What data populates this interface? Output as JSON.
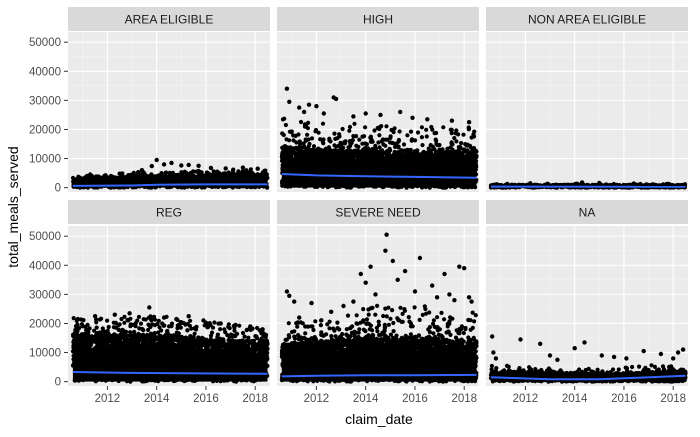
{
  "chart_data": {
    "type": "scatter",
    "xlabel": "claim_date",
    "ylabel": "total_meals_served",
    "x_ticks": [
      "2012",
      "2014",
      "2016",
      "2018"
    ],
    "x_tick_values": [
      2012,
      2014,
      2016,
      2018
    ],
    "xlim": [
      2010.4,
      2018.6
    ],
    "y_ticks": [
      "0",
      "10000",
      "20000",
      "30000",
      "40000",
      "50000"
    ],
    "y_tick_values": [
      0,
      10000,
      20000,
      30000,
      40000,
      50000
    ],
    "ylim": [
      -1500,
      53500
    ],
    "grid": true,
    "legend": "none",
    "colors": {
      "panel_bg": "#ebebeb",
      "strip_bg": "#d9d9d9",
      "grid_major": "#ffffff",
      "point": "#000000",
      "trend": "#3366ff",
      "text": "#4d4d4d",
      "strip_text": "#1a1a1a",
      "axis_title": "#000000"
    },
    "facets": [
      {
        "label": "AREA ELIGIBLE",
        "density": "medium",
        "band": [
          [
            2010.6,
            3000
          ],
          [
            2013.5,
            3800
          ],
          [
            2016.0,
            4500
          ],
          [
            2018.5,
            5000
          ]
        ],
        "scatter_top": [
          [
            2010.6,
            3800
          ],
          [
            2013.5,
            5500
          ],
          [
            2016.0,
            6000
          ],
          [
            2018.5,
            6500
          ]
        ],
        "outliers": [
          [
            2011.3,
            4500
          ],
          [
            2012.5,
            4800
          ],
          [
            2013.4,
            6000
          ],
          [
            2013.8,
            7400
          ],
          [
            2014.0,
            9500
          ],
          [
            2014.3,
            8000
          ],
          [
            2014.6,
            8500
          ],
          [
            2015.0,
            7600
          ],
          [
            2015.3,
            7800
          ],
          [
            2015.7,
            7500
          ],
          [
            2016.2,
            6800
          ],
          [
            2016.8,
            6600
          ],
          [
            2017.5,
            6900
          ],
          [
            2018.1,
            6500
          ]
        ],
        "trend": [
          [
            2010.6,
            600
          ],
          [
            2013.0,
            750
          ],
          [
            2014.0,
            1000
          ],
          [
            2016.0,
            1100
          ],
          [
            2018.5,
            1100
          ]
        ]
      },
      {
        "label": "HIGH",
        "density": "dense",
        "band": [
          [
            2010.6,
            14000
          ],
          [
            2012.0,
            13000
          ],
          [
            2014.0,
            12500
          ],
          [
            2016.0,
            12000
          ],
          [
            2018.5,
            12500
          ]
        ],
        "scatter_top": [
          [
            2010.6,
            24000
          ],
          [
            2012.0,
            22000
          ],
          [
            2014.0,
            22000
          ],
          [
            2016.0,
            21000
          ],
          [
            2018.5,
            21000
          ]
        ],
        "outliers": [
          [
            2010.8,
            34000
          ],
          [
            2010.9,
            29500
          ],
          [
            2011.3,
            27500
          ],
          [
            2011.5,
            26000
          ],
          [
            2011.7,
            28500
          ],
          [
            2012.0,
            28000
          ],
          [
            2012.3,
            25500
          ],
          [
            2012.7,
            31000
          ],
          [
            2012.8,
            30500
          ],
          [
            2013.5,
            24500
          ],
          [
            2014.0,
            25500
          ],
          [
            2014.6,
            25000
          ],
          [
            2015.4,
            26000
          ],
          [
            2015.9,
            24000
          ],
          [
            2016.5,
            23500
          ],
          [
            2017.5,
            23000
          ],
          [
            2018.2,
            22500
          ]
        ],
        "trend": [
          [
            2010.6,
            4700
          ],
          [
            2012.0,
            4200
          ],
          [
            2014.0,
            3900
          ],
          [
            2016.0,
            3700
          ],
          [
            2018.5,
            3400
          ]
        ]
      },
      {
        "label": "NON AREA ELIGIBLE",
        "density": "sparse",
        "band": [
          [
            2010.6,
            900
          ],
          [
            2014.0,
            1000
          ],
          [
            2018.5,
            900
          ]
        ],
        "scatter_top": [
          [
            2010.6,
            1300
          ],
          [
            2014.0,
            1500
          ],
          [
            2018.5,
            1200
          ]
        ],
        "outliers": [
          [
            2012.2,
            1500
          ],
          [
            2014.3,
            1800
          ],
          [
            2015.0,
            1600
          ],
          [
            2016.4,
            1400
          ],
          [
            2017.8,
            1300
          ]
        ],
        "trend": [
          [
            2010.6,
            350
          ],
          [
            2018.5,
            300
          ]
        ]
      },
      {
        "label": "REG",
        "density": "dense",
        "band": [
          [
            2010.6,
            16000
          ],
          [
            2013.0,
            16000
          ],
          [
            2015.0,
            15000
          ],
          [
            2018.5,
            13500
          ]
        ],
        "scatter_top": [
          [
            2010.6,
            22000
          ],
          [
            2013.0,
            23000
          ],
          [
            2015.0,
            22000
          ],
          [
            2018.5,
            18000
          ]
        ],
        "outliers": [
          [
            2010.8,
            21500
          ],
          [
            2011.5,
            22500
          ],
          [
            2012.3,
            23000
          ],
          [
            2012.9,
            23500
          ],
          [
            2013.7,
            25500
          ],
          [
            2014.3,
            22000
          ],
          [
            2014.8,
            21500
          ],
          [
            2015.3,
            22500
          ],
          [
            2015.9,
            21000
          ],
          [
            2016.6,
            20000
          ],
          [
            2017.2,
            19500
          ],
          [
            2017.8,
            19000
          ],
          [
            2018.3,
            18000
          ]
        ],
        "trend": [
          [
            2010.6,
            3300
          ],
          [
            2013.0,
            3000
          ],
          [
            2015.0,
            2900
          ],
          [
            2018.5,
            2700
          ]
        ]
      },
      {
        "label": "SEVERE NEED",
        "density": "dense",
        "band": [
          [
            2010.6,
            13000
          ],
          [
            2012.5,
            13500
          ],
          [
            2014.0,
            15000
          ],
          [
            2016.0,
            15000
          ],
          [
            2018.5,
            14000
          ]
        ],
        "scatter_top": [
          [
            2010.6,
            20000
          ],
          [
            2012.5,
            22000
          ],
          [
            2014.0,
            26000
          ],
          [
            2016.0,
            27000
          ],
          [
            2018.5,
            24000
          ]
        ],
        "outliers": [
          [
            2010.8,
            31000
          ],
          [
            2010.9,
            29500
          ],
          [
            2011.1,
            27500
          ],
          [
            2011.3,
            22000
          ],
          [
            2011.8,
            27000
          ],
          [
            2012.6,
            24000
          ],
          [
            2013.1,
            26000
          ],
          [
            2013.5,
            27500
          ],
          [
            2013.8,
            37000
          ],
          [
            2014.0,
            34000
          ],
          [
            2014.2,
            39500
          ],
          [
            2014.4,
            30000
          ],
          [
            2014.8,
            45000
          ],
          [
            2014.85,
            50500
          ],
          [
            2015.1,
            41500
          ],
          [
            2015.3,
            35000
          ],
          [
            2015.6,
            38000
          ],
          [
            2016.0,
            31000
          ],
          [
            2016.2,
            42500
          ],
          [
            2016.7,
            33000
          ],
          [
            2016.9,
            29000
          ],
          [
            2017.2,
            37000
          ],
          [
            2017.4,
            30000
          ],
          [
            2017.6,
            28000
          ],
          [
            2017.8,
            39500
          ],
          [
            2018.0,
            39000
          ],
          [
            2018.2,
            29000
          ],
          [
            2018.3,
            27500
          ]
        ],
        "trend": [
          [
            2010.6,
            1800
          ],
          [
            2012.0,
            2000
          ],
          [
            2014.0,
            2200
          ],
          [
            2016.0,
            2200
          ],
          [
            2018.5,
            2300
          ]
        ]
      },
      {
        "label": "NA",
        "density": "medium",
        "band": [
          [
            2010.6,
            3500
          ],
          [
            2013.0,
            2800
          ],
          [
            2016.0,
            2800
          ],
          [
            2018.5,
            3500
          ]
        ],
        "scatter_top": [
          [
            2010.6,
            6000
          ],
          [
            2013.0,
            4500
          ],
          [
            2016.0,
            5000
          ],
          [
            2018.5,
            6500
          ]
        ],
        "outliers": [
          [
            2010.65,
            15500
          ],
          [
            2010.7,
            10000
          ],
          [
            2010.8,
            8000
          ],
          [
            2011.8,
            14500
          ],
          [
            2012.6,
            13000
          ],
          [
            2013.0,
            9000
          ],
          [
            2013.3,
            7500
          ],
          [
            2014.0,
            11500
          ],
          [
            2014.4,
            13500
          ],
          [
            2015.1,
            9000
          ],
          [
            2015.6,
            8500
          ],
          [
            2016.1,
            8000
          ],
          [
            2016.8,
            10500
          ],
          [
            2017.5,
            9500
          ],
          [
            2018.0,
            8000
          ],
          [
            2018.2,
            10000
          ],
          [
            2018.4,
            11000
          ]
        ],
        "trend": [
          [
            2010.6,
            1500
          ],
          [
            2013.0,
            800
          ],
          [
            2015.0,
            800
          ],
          [
            2018.5,
            2000
          ]
        ]
      }
    ]
  }
}
